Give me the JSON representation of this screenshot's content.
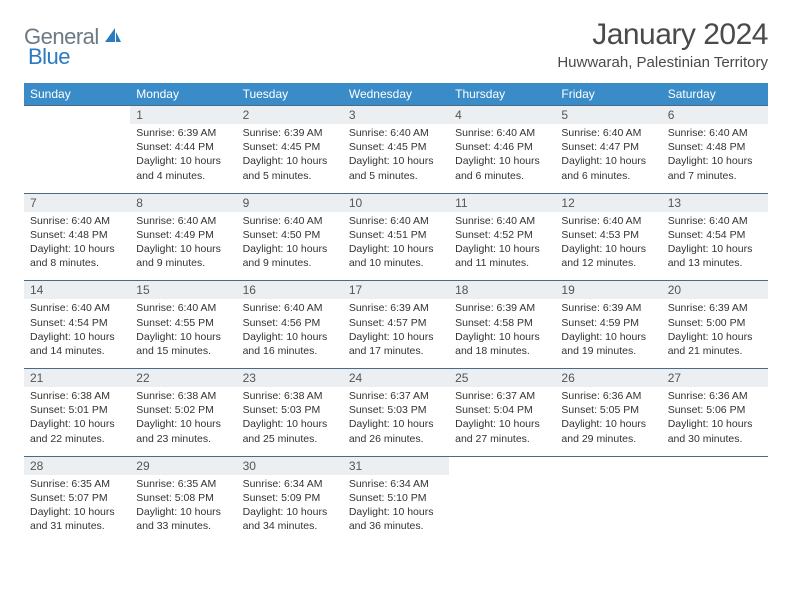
{
  "logo": {
    "general": "General",
    "blue": "Blue"
  },
  "title": "January 2024",
  "location": "Huwwarah, Palestinian Territory",
  "theme": {
    "header_bg": "#3a8cc9",
    "header_fg": "#ffffff",
    "daynum_bg": "#eceff1",
    "border": "#4a6b85",
    "text": "#333333",
    "logo_grey": "#6b7a85",
    "logo_blue": "#2a7bbf",
    "sail_color": "#2a7bbf"
  },
  "weekdays": [
    "Sunday",
    "Monday",
    "Tuesday",
    "Wednesday",
    "Thursday",
    "Friday",
    "Saturday"
  ],
  "weeks": [
    [
      null,
      {
        "n": "1",
        "sr": "6:39 AM",
        "ss": "4:44 PM",
        "dl": "10 hours and 4 minutes."
      },
      {
        "n": "2",
        "sr": "6:39 AM",
        "ss": "4:45 PM",
        "dl": "10 hours and 5 minutes."
      },
      {
        "n": "3",
        "sr": "6:40 AM",
        "ss": "4:45 PM",
        "dl": "10 hours and 5 minutes."
      },
      {
        "n": "4",
        "sr": "6:40 AM",
        "ss": "4:46 PM",
        "dl": "10 hours and 6 minutes."
      },
      {
        "n": "5",
        "sr": "6:40 AM",
        "ss": "4:47 PM",
        "dl": "10 hours and 6 minutes."
      },
      {
        "n": "6",
        "sr": "6:40 AM",
        "ss": "4:48 PM",
        "dl": "10 hours and 7 minutes."
      }
    ],
    [
      {
        "n": "7",
        "sr": "6:40 AM",
        "ss": "4:48 PM",
        "dl": "10 hours and 8 minutes."
      },
      {
        "n": "8",
        "sr": "6:40 AM",
        "ss": "4:49 PM",
        "dl": "10 hours and 9 minutes."
      },
      {
        "n": "9",
        "sr": "6:40 AM",
        "ss": "4:50 PM",
        "dl": "10 hours and 9 minutes."
      },
      {
        "n": "10",
        "sr": "6:40 AM",
        "ss": "4:51 PM",
        "dl": "10 hours and 10 minutes."
      },
      {
        "n": "11",
        "sr": "6:40 AM",
        "ss": "4:52 PM",
        "dl": "10 hours and 11 minutes."
      },
      {
        "n": "12",
        "sr": "6:40 AM",
        "ss": "4:53 PM",
        "dl": "10 hours and 12 minutes."
      },
      {
        "n": "13",
        "sr": "6:40 AM",
        "ss": "4:54 PM",
        "dl": "10 hours and 13 minutes."
      }
    ],
    [
      {
        "n": "14",
        "sr": "6:40 AM",
        "ss": "4:54 PM",
        "dl": "10 hours and 14 minutes."
      },
      {
        "n": "15",
        "sr": "6:40 AM",
        "ss": "4:55 PM",
        "dl": "10 hours and 15 minutes."
      },
      {
        "n": "16",
        "sr": "6:40 AM",
        "ss": "4:56 PM",
        "dl": "10 hours and 16 minutes."
      },
      {
        "n": "17",
        "sr": "6:39 AM",
        "ss": "4:57 PM",
        "dl": "10 hours and 17 minutes."
      },
      {
        "n": "18",
        "sr": "6:39 AM",
        "ss": "4:58 PM",
        "dl": "10 hours and 18 minutes."
      },
      {
        "n": "19",
        "sr": "6:39 AM",
        "ss": "4:59 PM",
        "dl": "10 hours and 19 minutes."
      },
      {
        "n": "20",
        "sr": "6:39 AM",
        "ss": "5:00 PM",
        "dl": "10 hours and 21 minutes."
      }
    ],
    [
      {
        "n": "21",
        "sr": "6:38 AM",
        "ss": "5:01 PM",
        "dl": "10 hours and 22 minutes."
      },
      {
        "n": "22",
        "sr": "6:38 AM",
        "ss": "5:02 PM",
        "dl": "10 hours and 23 minutes."
      },
      {
        "n": "23",
        "sr": "6:38 AM",
        "ss": "5:03 PM",
        "dl": "10 hours and 25 minutes."
      },
      {
        "n": "24",
        "sr": "6:37 AM",
        "ss": "5:03 PM",
        "dl": "10 hours and 26 minutes."
      },
      {
        "n": "25",
        "sr": "6:37 AM",
        "ss": "5:04 PM",
        "dl": "10 hours and 27 minutes."
      },
      {
        "n": "26",
        "sr": "6:36 AM",
        "ss": "5:05 PM",
        "dl": "10 hours and 29 minutes."
      },
      {
        "n": "27",
        "sr": "6:36 AM",
        "ss": "5:06 PM",
        "dl": "10 hours and 30 minutes."
      }
    ],
    [
      {
        "n": "28",
        "sr": "6:35 AM",
        "ss": "5:07 PM",
        "dl": "10 hours and 31 minutes."
      },
      {
        "n": "29",
        "sr": "6:35 AM",
        "ss": "5:08 PM",
        "dl": "10 hours and 33 minutes."
      },
      {
        "n": "30",
        "sr": "6:34 AM",
        "ss": "5:09 PM",
        "dl": "10 hours and 34 minutes."
      },
      {
        "n": "31",
        "sr": "6:34 AM",
        "ss": "5:10 PM",
        "dl": "10 hours and 36 minutes."
      },
      null,
      null,
      null
    ]
  ],
  "labels": {
    "sunrise": "Sunrise:",
    "sunset": "Sunset:",
    "daylight": "Daylight:"
  }
}
